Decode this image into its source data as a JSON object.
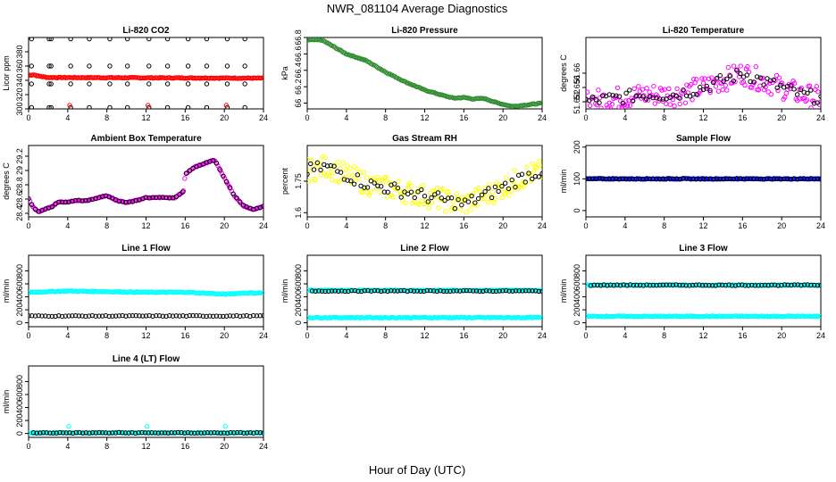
{
  "figure": {
    "title": "NWR_081104  Average Diagnostics",
    "xlabel": "Hour of Day (UTC)"
  },
  "chart_data": [
    {
      "type": "scatter",
      "title": "Li-820 CO2",
      "ylabel": "Licor ppm",
      "xlim": [
        0,
        24
      ],
      "ylim": [
        300,
        400
      ],
      "xticks": [
        0,
        4,
        8,
        12,
        16,
        20,
        24
      ],
      "yticks": [
        300,
        320,
        340,
        360,
        380
      ],
      "series": [
        {
          "color": "#000000",
          "pattern": "cycle",
          "x": [
            0.3,
            2.1,
            2.3,
            4.3,
            6.2,
            8.3,
            10.1,
            12.3,
            14.2,
            16.3,
            18.2,
            20.3,
            22.1,
            24.3
          ],
          "y": [
            [
              302,
              335,
              360,
              398
            ]
          ]
        },
        {
          "color": "#ff0000",
          "pattern": "trend",
          "x": [
            0,
            0.5,
            1,
            2,
            24
          ],
          "y": [
            347,
            348,
            346,
            344,
            343
          ]
        },
        {
          "color": "#ff0000",
          "pattern": "points",
          "x": [
            4.2,
            12.2,
            20.2
          ],
          "y": [
            305,
            305,
            305
          ]
        }
      ]
    },
    {
      "type": "scatter",
      "title": "Li-820 Pressure",
      "ylabel": "kPa",
      "xlim": [
        0,
        24
      ],
      "ylim": [
        65.93,
        66.8
      ],
      "xticks": [
        0,
        4,
        8,
        12,
        16,
        20,
        24
      ],
      "yticks": [
        66.0,
        66.2,
        66.4,
        66.6,
        66.8
      ],
      "series": [
        {
          "color": "#2e8b2e",
          "pattern": "trend",
          "x": [
            0,
            1.5,
            4,
            6,
            8,
            10,
            12,
            14,
            15,
            16,
            17,
            18,
            19.5,
            21,
            22.5,
            24
          ],
          "y": [
            66.77,
            66.77,
            66.6,
            66.52,
            66.38,
            66.26,
            66.16,
            66.09,
            66.06,
            66.07,
            66.05,
            66.06,
            66.0,
            65.96,
            65.98,
            66.0
          ]
        }
      ]
    },
    {
      "type": "scatter",
      "title": "Li-820 Temperature",
      "ylabel": "degrees C",
      "xlim": [
        0,
        24
      ],
      "ylim": [
        51.65,
        51.67
      ],
      "xticks": [
        0,
        4,
        8,
        12,
        16,
        20,
        24
      ],
      "yticks": [
        51.652,
        51.656,
        51.66
      ],
      "series": [
        {
          "color": "#ff00ff",
          "pattern": "trend",
          "x": [
            0,
            3,
            6,
            9,
            12,
            14,
            16,
            18,
            20,
            22,
            24
          ],
          "y": [
            51.652,
            51.653,
            51.654,
            51.654,
            51.656,
            51.658,
            51.66,
            51.658,
            51.656,
            51.654,
            51.653
          ]
        },
        {
          "color": "#000000",
          "pattern": "trend",
          "x": [
            0,
            3,
            6,
            9,
            12,
            14,
            16,
            18,
            20,
            22,
            24
          ],
          "y": [
            51.652,
            51.653,
            51.654,
            51.654,
            51.656,
            51.658,
            51.66,
            51.658,
            51.656,
            51.654,
            51.653
          ]
        }
      ]
    },
    {
      "type": "scatter",
      "title": "Ambient Box Temperature",
      "ylabel": "degrees C",
      "xlim": [
        0,
        24
      ],
      "ylim": [
        28.35,
        29.35
      ],
      "xticks": [
        0,
        4,
        8,
        12,
        16,
        20,
        24
      ],
      "yticks": [
        28.4,
        28.6,
        28.8,
        29.0,
        29.2
      ],
      "series": [
        {
          "color": "#ff00ff",
          "pattern": "trend",
          "x": [
            0,
            0.5,
            1,
            1.5,
            2.5,
            3,
            4,
            5,
            6,
            8,
            9,
            10,
            11,
            12,
            13,
            14,
            15,
            15.8,
            16,
            17,
            18,
            19,
            20,
            21,
            22,
            23,
            24
          ],
          "y": [
            28.6,
            28.48,
            28.42,
            28.45,
            28.5,
            28.56,
            28.56,
            28.58,
            28.58,
            28.65,
            28.58,
            28.55,
            28.58,
            28.62,
            28.62,
            28.62,
            28.62,
            28.7,
            28.95,
            29.05,
            29.1,
            29.15,
            28.9,
            28.65,
            28.5,
            28.45,
            28.5
          ]
        },
        {
          "color": "#000000",
          "pattern": "trend",
          "x": [
            0,
            0.5,
            1,
            1.5,
            2.5,
            3,
            4,
            5,
            6,
            8,
            9,
            10,
            11,
            12,
            13,
            14,
            15,
            15.8,
            16,
            17,
            18,
            19,
            20,
            21,
            22,
            23,
            24
          ],
          "y": [
            28.6,
            28.48,
            28.42,
            28.45,
            28.5,
            28.56,
            28.56,
            28.58,
            28.58,
            28.65,
            28.58,
            28.55,
            28.58,
            28.62,
            28.62,
            28.62,
            28.62,
            28.7,
            28.95,
            29.05,
            29.1,
            29.15,
            28.9,
            28.65,
            28.5,
            28.45,
            28.5
          ]
        }
      ]
    },
    {
      "type": "scatter",
      "title": "Gas Stream RH",
      "ylabel": "percent",
      "xlim": [
        0,
        24
      ],
      "ylim": [
        1.58,
        1.92
      ],
      "xticks": [
        0,
        4,
        8,
        12,
        16,
        20,
        24
      ],
      "yticks": [
        1.6,
        1.75
      ],
      "series": [
        {
          "color": "#ffff00",
          "pattern": "trend",
          "x": [
            0,
            2,
            4,
            6,
            8,
            10,
            12,
            14,
            16,
            18,
            20,
            22,
            24
          ],
          "y": [
            1.8,
            1.82,
            1.78,
            1.74,
            1.72,
            1.7,
            1.68,
            1.66,
            1.64,
            1.68,
            1.72,
            1.77,
            1.8
          ]
        },
        {
          "color": "#000000",
          "pattern": "trend",
          "x": [
            0,
            2,
            4,
            6,
            8,
            10,
            12,
            14,
            16,
            18,
            20,
            22,
            24
          ],
          "y": [
            1.8,
            1.82,
            1.78,
            1.74,
            1.72,
            1.7,
            1.68,
            1.66,
            1.64,
            1.68,
            1.72,
            1.77,
            1.8
          ]
        }
      ]
    },
    {
      "type": "scatter",
      "title": "Sample Flow",
      "ylabel": "ml/min",
      "xlim": [
        0,
        24
      ],
      "ylim": [
        -20,
        205
      ],
      "xticks": [
        0,
        4,
        8,
        12,
        16,
        20,
        24
      ],
      "yticks": [
        0,
        100,
        200
      ],
      "series": [
        {
          "color": "#0000ff",
          "pattern": "trend",
          "x": [
            0,
            24
          ],
          "y": [
            100,
            100
          ]
        },
        {
          "color": "#000000",
          "pattern": "trend",
          "x": [
            0,
            24
          ],
          "y": [
            100,
            100
          ]
        }
      ]
    },
    {
      "type": "scatter",
      "title": "Line 1 Flow",
      "ylabel": "ml/min",
      "xlim": [
        0,
        24
      ],
      "ylim": [
        -60,
        1040
      ],
      "xticks": [
        0,
        4,
        8,
        12,
        16,
        20,
        24
      ],
      "yticks": [
        0,
        200,
        400,
        600,
        800
      ],
      "series": [
        {
          "color": "#00ffff",
          "pattern": "trend",
          "x": [
            0,
            4,
            8,
            12,
            16,
            19,
            20,
            22,
            24
          ],
          "y": [
            470,
            490,
            480,
            470,
            470,
            450,
            440,
            460,
            460
          ]
        },
        {
          "color": "#000000",
          "pattern": "trend",
          "x": [
            0,
            24
          ],
          "y": [
            105,
            105
          ]
        }
      ]
    },
    {
      "type": "scatter",
      "title": "Line 2 Flow",
      "ylabel": "ml/min",
      "xlim": [
        0,
        24
      ],
      "ylim": [
        -60,
        1040
      ],
      "xticks": [
        0,
        4,
        8,
        12,
        16,
        20,
        24
      ],
      "yticks": [
        0,
        200,
        400,
        600,
        800
      ],
      "series": [
        {
          "color": "#00ffff",
          "pattern": "trend",
          "x": [
            0,
            24
          ],
          "y": [
            500,
            500
          ]
        },
        {
          "color": "#00ffff",
          "pattern": "trend",
          "x": [
            0,
            24
          ],
          "y": [
            80,
            80
          ]
        },
        {
          "color": "#000000",
          "pattern": "trend",
          "x": [
            0.5,
            24
          ],
          "y": [
            490,
            490
          ]
        }
      ]
    },
    {
      "type": "scatter",
      "title": "Line 3 Flow",
      "ylabel": "ml/min",
      "xlim": [
        0,
        24
      ],
      "ylim": [
        -60,
        1040
      ],
      "xticks": [
        0,
        4,
        8,
        12,
        16,
        20,
        24
      ],
      "yticks": [
        0,
        200,
        400,
        600,
        800
      ],
      "series": [
        {
          "color": "#00ffff",
          "pattern": "trend",
          "x": [
            0,
            24
          ],
          "y": [
            580,
            580
          ]
        },
        {
          "color": "#00ffff",
          "pattern": "trend",
          "x": [
            0,
            24
          ],
          "y": [
            100,
            100
          ]
        },
        {
          "color": "#000000",
          "pattern": "trend",
          "x": [
            0.5,
            24
          ],
          "y": [
            580,
            580
          ]
        }
      ]
    },
    {
      "type": "scatter",
      "title": "Line 4 (LT) Flow",
      "ylabel": "ml/min",
      "xlim": [
        0,
        24
      ],
      "ylim": [
        -60,
        1040
      ],
      "xticks": [
        0,
        4,
        8,
        12,
        16,
        20,
        24
      ],
      "yticks": [
        0,
        200,
        400,
        600,
        800
      ],
      "series": [
        {
          "color": "#00ffff",
          "pattern": "trend",
          "x": [
            0,
            24
          ],
          "y": [
            10,
            10
          ]
        },
        {
          "color": "#000000",
          "pattern": "trend",
          "x": [
            0.5,
            24
          ],
          "y": [
            10,
            10
          ]
        },
        {
          "color": "#00ffff",
          "pattern": "points",
          "x": [
            4.1,
            12.1,
            20.1
          ],
          "y": [
            110,
            110,
            110
          ]
        }
      ]
    }
  ]
}
